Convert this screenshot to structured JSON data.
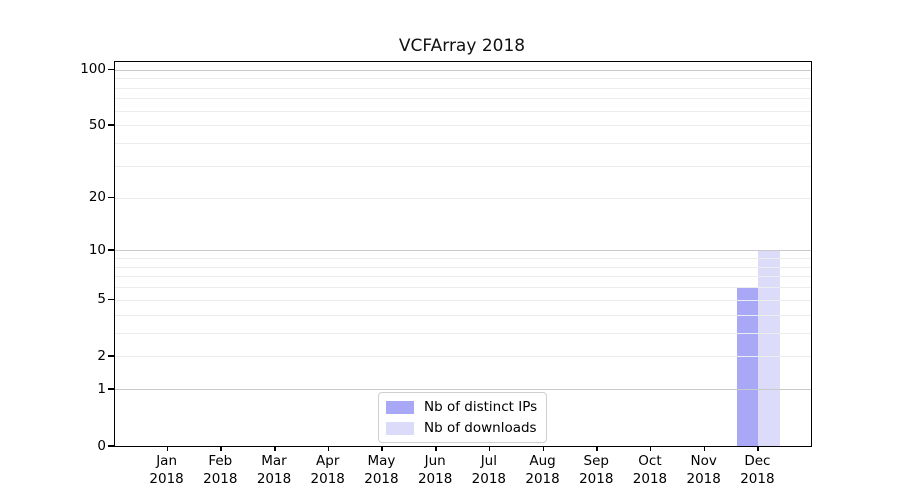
{
  "chart_data": {
    "type": "bar",
    "title": "VCFArray 2018",
    "categories": [
      "Jan",
      "Feb",
      "Mar",
      "Apr",
      "May",
      "Jun",
      "Jul",
      "Aug",
      "Sep",
      "Oct",
      "Nov",
      "Dec"
    ],
    "category_year": "2018",
    "series": [
      {
        "name": "Nb of distinct IPs",
        "color": "#a8a8f6",
        "values": [
          0,
          0,
          0,
          0,
          0,
          0,
          0,
          0,
          0,
          0,
          0,
          6
        ]
      },
      {
        "name": "Nb of downloads",
        "color": "#dcdcfa",
        "values": [
          0,
          0,
          0,
          0,
          0,
          0,
          0,
          0,
          0,
          0,
          0,
          10
        ]
      }
    ],
    "xlabel": "",
    "ylabel": "",
    "y_scale": "symlog",
    "ylim": [
      0,
      110
    ],
    "yticks": [
      0,
      1,
      2,
      5,
      10,
      20,
      50,
      100
    ],
    "major_gridlines": [
      1,
      10,
      100
    ],
    "minor_gridlines": [
      2,
      3,
      4,
      5,
      6,
      7,
      8,
      9,
      20,
      30,
      40,
      50,
      60,
      70,
      80,
      90
    ],
    "grid": "horizontal",
    "legend_position": "lower center inside"
  },
  "colors": {
    "spine": "#000000",
    "major_grid": "#c9c9c9",
    "minor_grid": "#ececec",
    "legend_border": "#cfcfcf",
    "background": "#ffffff"
  }
}
